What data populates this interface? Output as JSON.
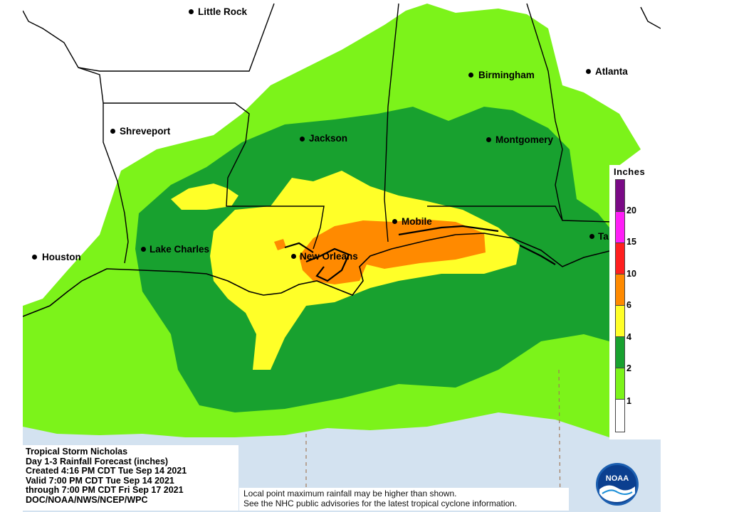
{
  "map": {
    "type": "rainfall-forecast-map",
    "colors": {
      "water": "#d3e2f0",
      "land_none": "#ffffff",
      "rain_1": "#7cf31a",
      "rain_2": "#18a12f",
      "rain_4": "#ffff28",
      "rain_6": "#ff8a00",
      "border": "#000000"
    },
    "cities": [
      {
        "name": "Little Rock",
        "id": "little-rock"
      },
      {
        "name": "Birmingham",
        "id": "birmingham"
      },
      {
        "name": "Atlanta",
        "id": "atlanta"
      },
      {
        "name": "Shreveport",
        "id": "shreveport"
      },
      {
        "name": "Jackson",
        "id": "jackson"
      },
      {
        "name": "Montgomery",
        "id": "montgomery"
      },
      {
        "name": "Mobile",
        "id": "mobile"
      },
      {
        "name": "Ta",
        "id": "tallahassee"
      },
      {
        "name": "Lake Charles",
        "id": "lake-charles"
      },
      {
        "name": "New Orleans",
        "id": "new-orleans"
      },
      {
        "name": "Houston",
        "id": "houston"
      }
    ]
  },
  "legend": {
    "title": "Inches",
    "entries": [
      {
        "label": "20",
        "color": "#7a0a86"
      },
      {
        "label": "15",
        "color": "#ff1ef7"
      },
      {
        "label": "10",
        "color": "#ff1f1f"
      },
      {
        "label": "6",
        "color": "#ff8a00"
      },
      {
        "label": "4",
        "color": "#ffff28"
      },
      {
        "label": "2",
        "color": "#18a12f"
      },
      {
        "label": "1",
        "color": "#7cf31a"
      },
      {
        "label": "",
        "color": "#ffffff"
      }
    ]
  },
  "info": {
    "title": "Tropical Storm Nicholas",
    "product": "Day 1-3 Rainfall Forecast (inches)",
    "created": "Created 4:16 PM CDT Tue Sep 14 2021",
    "valid": "Valid 7:00 PM CDT Tue Sep 14 2021",
    "through": "through 7:00 PM CDT Fri Sep 17 2021",
    "source": "DOC/NOAA/NWS/NCEP/WPC"
  },
  "disclaimer": {
    "line1": "Local point maximum rainfall may be higher than shown.",
    "line2": "See the NHC public advisories for the latest tropical cyclone information."
  },
  "logo": {
    "text": "NOAA"
  }
}
